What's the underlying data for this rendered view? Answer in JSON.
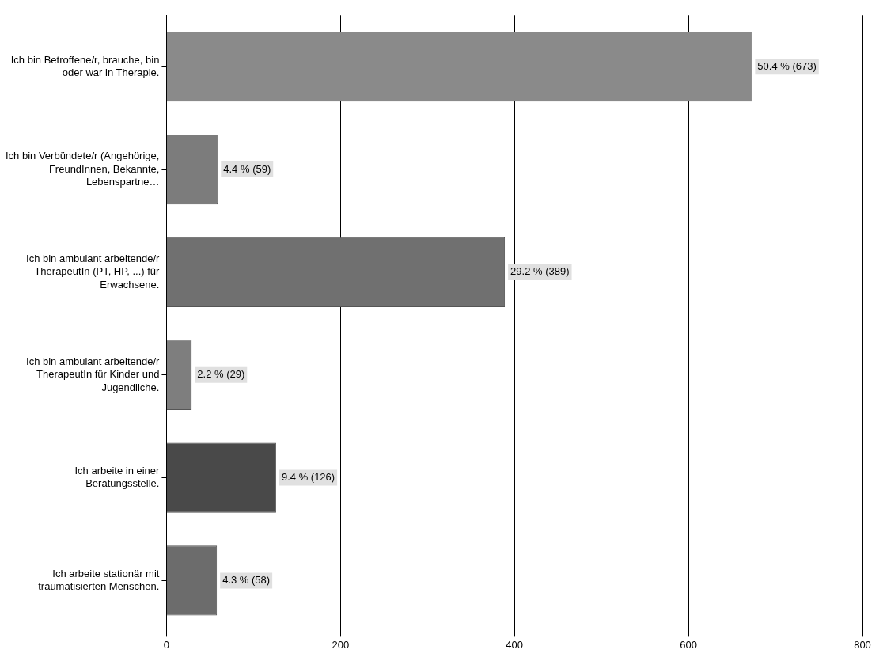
{
  "chart_data": {
    "type": "bar",
    "orientation": "horizontal",
    "categories": [
      "Ich bin Betroffene/r, brauche, bin oder war in Therapie.",
      "Ich bin Verbündete/r (Angehörige, FreundInnen, Bekannte, Lebenspartne…",
      "Ich bin ambulant arbeitende/r TherapeutIn (PT, HP, ...) für Erwachsene.",
      "Ich bin ambulant arbeitende/r TherapeutIn für Kinder und Jugendliche.",
      "Ich arbeite in einer Beratungsstelle.",
      "Ich arbeite stationär mit traumatisierten Menschen."
    ],
    "values": [
      673,
      59,
      389,
      29,
      126,
      58
    ],
    "colors": [
      "#8a8a8a",
      "#7c7c7c",
      "#707070",
      "#7e7e7e",
      "#494949",
      "#6c6c6c"
    ],
    "value_labels": [
      "50.4 % (673)",
      "4.4 % (59)",
      "29.2 % (389)",
      "2.2 % (29)",
      "9.4 % (126)",
      "4.3 % (58)"
    ],
    "xlim": [
      0,
      800
    ],
    "xticks": [
      0,
      200,
      400,
      600,
      800
    ],
    "grid": "x",
    "legend": false
  }
}
